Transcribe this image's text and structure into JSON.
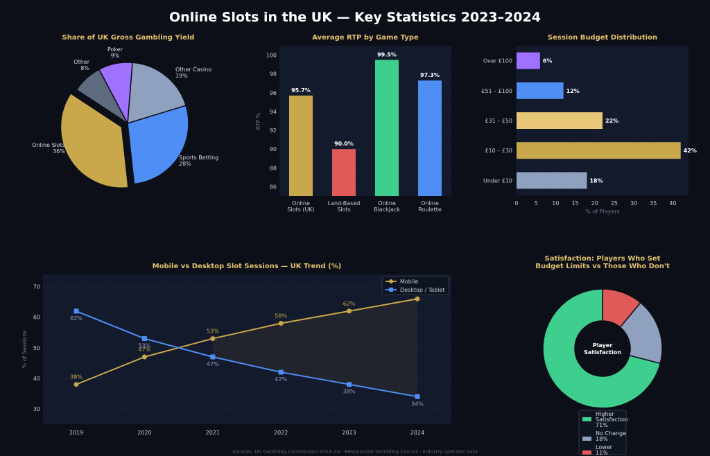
{
  "page": {
    "title": "Online Slots in the UK — Key Statistics 2023–2024",
    "footer": "Sources: UK Gambling Commission 2023–24 · Responsible Gambling Council · Industry operator data"
  },
  "colors": {
    "gold": "#c9a84c",
    "blue": "#4f8ef5",
    "green": "#3ecf8e",
    "red": "#e05a5a",
    "purple": "#a070ff",
    "slate": "#8fa1bf",
    "grey": "#5d6a80",
    "sand": "#e8c878"
  },
  "chart_data": [
    {
      "type": "pie",
      "title": "Share of UK Gross Gambling Yield",
      "labels": [
        "Online Slots",
        "Sports Betting",
        "Other Casino",
        "Poker",
        "Other"
      ],
      "values": [
        36,
        28,
        19,
        9,
        8
      ],
      "value_labels": [
        "36%",
        "28%",
        "19%",
        "9%",
        "8%"
      ],
      "colors": [
        "#c9a84c",
        "#4f8ef5",
        "#8fa1bf",
        "#a070ff",
        "#5d6a80"
      ],
      "exploded": "Online Slots"
    },
    {
      "type": "bar",
      "title": "Average RTP by Game Type",
      "categories": [
        "Online Slots (UK)",
        "Land-Based Slots",
        "Online Blackjack",
        "Online Roulette"
      ],
      "category_lines": [
        [
          "Online",
          "Slots (UK)"
        ],
        [
          "Land-Based",
          "Slots"
        ],
        [
          "Online",
          "Blackjack"
        ],
        [
          "Online",
          "Roulette"
        ]
      ],
      "values": [
        95.7,
        90.0,
        99.5,
        97.3
      ],
      "value_labels": [
        "95.7%",
        "90.0%",
        "99.5%",
        "97.3%"
      ],
      "colors": [
        "#c9a84c",
        "#e05a5a",
        "#3ecf8e",
        "#4f8ef5"
      ],
      "ylabel": "RTP %",
      "ylim": [
        85,
        101
      ],
      "yticks": [
        86,
        88,
        90,
        92,
        94,
        96,
        98,
        100
      ]
    },
    {
      "type": "bar",
      "orientation": "horizontal",
      "title": "Session Budget Distribution",
      "categories": [
        "Under £10",
        "£10 – £30",
        "£31 – £50",
        "£51 – £100",
        "Over £100"
      ],
      "values": [
        18,
        42,
        22,
        12,
        6
      ],
      "value_labels": [
        "18%",
        "42%",
        "22%",
        "12%",
        "6%"
      ],
      "colors": [
        "#8fa1bf",
        "#c9a84c",
        "#e8c878",
        "#4f8ef5",
        "#a070ff"
      ],
      "xlabel": "% of Players",
      "xlim": [
        0,
        44
      ],
      "xticks": [
        0,
        5,
        10,
        15,
        20,
        25,
        30,
        35,
        40
      ]
    },
    {
      "type": "line",
      "title": "Mobile vs Desktop Slot Sessions — UK Trend (%)",
      "x": [
        2019,
        2020,
        2021,
        2022,
        2023,
        2024
      ],
      "series": [
        {
          "name": "Mobile",
          "values": [
            38,
            47,
            53,
            58,
            62,
            66
          ],
          "value_labels": [
            "38%",
            "47%",
            "53%",
            "58%",
            "62%",
            "66%"
          ],
          "color": "#c9a84c",
          "marker": "circle"
        },
        {
          "name": "Desktop / Tablet",
          "values": [
            62,
            53,
            47,
            42,
            38,
            34
          ],
          "value_labels": [
            "62%",
            "53%",
            "47%",
            "42%",
            "38%",
            "34%"
          ],
          "color": "#4f8ef5",
          "marker": "square"
        }
      ],
      "ylabel": "% of Sessions",
      "ylim": [
        25,
        74
      ],
      "yticks": [
        30,
        40,
        50,
        60,
        70
      ],
      "legend": "top-right",
      "shaded_gap": "2021–2024"
    },
    {
      "type": "pie",
      "donut": true,
      "title": "Satisfaction: Players Who Set Budget Limits vs Those Who Don't",
      "title_lines": [
        "Satisfaction: Players Who Set",
        "Budget Limits vs Those Who Don't"
      ],
      "center_lines": [
        "Player",
        "Satisfaction"
      ],
      "labels": [
        "Higher Satisfaction",
        "No Change",
        "Lower"
      ],
      "values": [
        71,
        18,
        11
      ],
      "legend_lines": [
        [
          "Higher",
          "Satisfaction",
          "71%"
        ],
        [
          "No Change",
          "18%"
        ],
        [
          "Lower",
          "11%"
        ]
      ],
      "colors": [
        "#3ecf8e",
        "#8fa1bf",
        "#e05a5a"
      ],
      "legend": "bottom"
    }
  ]
}
